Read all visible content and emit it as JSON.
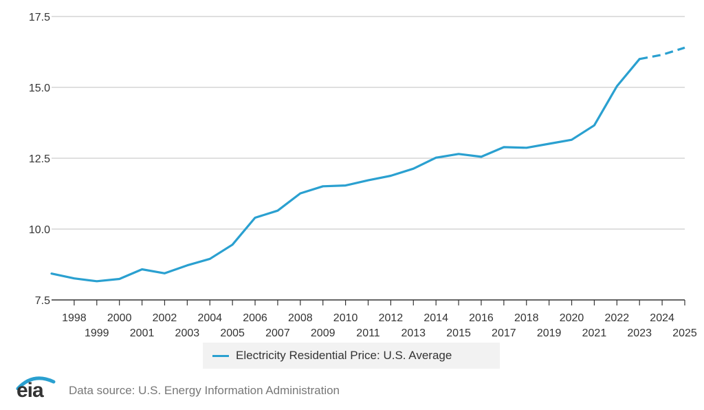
{
  "chart_data": {
    "type": "line",
    "title": "",
    "xlabel": "",
    "ylabel": "",
    "x": [
      1997,
      1998,
      1999,
      2000,
      2001,
      2002,
      2003,
      2004,
      2005,
      2006,
      2007,
      2008,
      2009,
      2010,
      2011,
      2012,
      2013,
      2014,
      2015,
      2016,
      2017,
      2018,
      2019,
      2020,
      2021,
      2022,
      2023,
      2024,
      2025
    ],
    "series": [
      {
        "name": "Electricity Residential Price: U.S. Average",
        "color": "#2aa0d0",
        "values": [
          8.43,
          8.26,
          8.16,
          8.24,
          8.58,
          8.44,
          8.72,
          8.95,
          9.45,
          10.4,
          10.65,
          11.26,
          11.51,
          11.54,
          11.72,
          11.88,
          12.13,
          12.52,
          12.65,
          12.55,
          12.89,
          12.87,
          13.01,
          13.15,
          13.66,
          15.04,
          16.0,
          16.15,
          16.4
        ],
        "forecast_from": 2023,
        "forecast_style": "dashed"
      }
    ],
    "ylim": [
      7.5,
      17.5
    ],
    "xlim": [
      1997,
      2025
    ],
    "y_ticks": [
      "7.5",
      "10.0",
      "12.5",
      "15.0",
      "17.5"
    ],
    "x_ticks_upper": [
      "1998",
      "2000",
      "2002",
      "2004",
      "2006",
      "2008",
      "2010",
      "2012",
      "2014",
      "2016",
      "2018",
      "2020",
      "2022",
      "2024"
    ],
    "x_ticks_lower": [
      "1999",
      "2001",
      "2003",
      "2005",
      "2007",
      "2009",
      "2011",
      "2013",
      "2015",
      "2017",
      "2019",
      "2021",
      "2023",
      "2025"
    ],
    "grid": "horizontal",
    "legend_placement": "bottom-center"
  },
  "legend": {
    "label": "Electricity Residential Price: U.S. Average"
  },
  "footer": {
    "logo_text": "eia",
    "source_text": "Data source: U.S. Energy Information Administration"
  },
  "colors": {
    "series": "#2aa0d0",
    "grid": "#cccccc",
    "axis": "#333333"
  }
}
